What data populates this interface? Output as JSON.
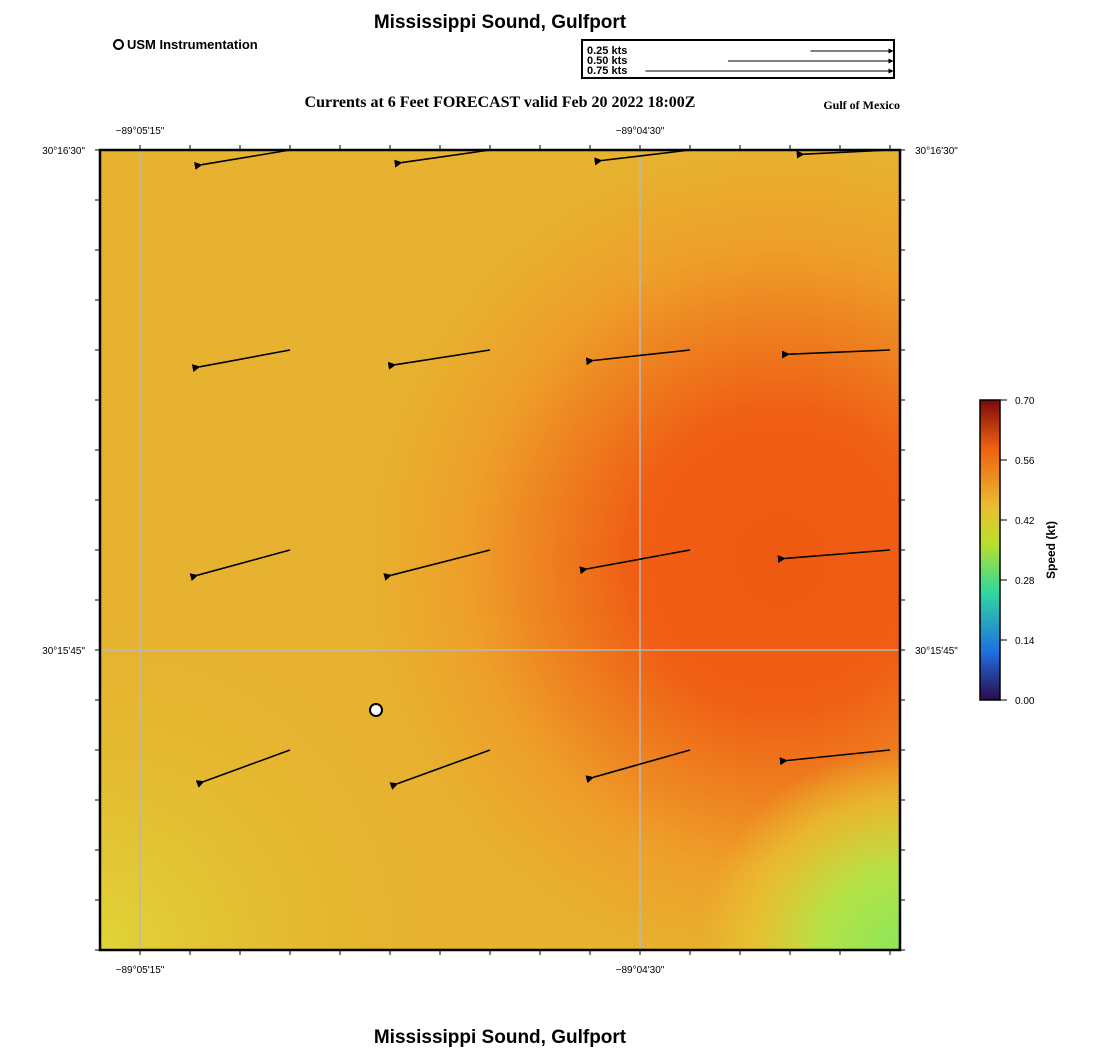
{
  "title": "Mississippi Sound, Gulfport",
  "subtitle": "Currents at 6 Feet FORECAST valid Feb 20 2022 18:00Z",
  "region": "Gulf of Mexico",
  "legend": {
    "station_label": "USM Instrumentation",
    "reference_vectors": [
      {
        "label": "0.25 kts",
        "speed": 0.25
      },
      {
        "label": "0.50 kts",
        "speed": 0.5
      },
      {
        "label": "0.75 kts",
        "speed": 0.75
      }
    ]
  },
  "axes": {
    "x_ticks": [
      "−89°05'15\"",
      "−89°04'30\""
    ],
    "y_ticks": [
      "30°16'30\"",
      "30°15'45\""
    ],
    "grid": true
  },
  "colorbar": {
    "title": "Speed (kt)",
    "ticks": [
      "0.70",
      "0.56",
      "0.42",
      "0.28",
      "0.14",
      "0.00"
    ],
    "min": 0.0,
    "max": 0.7,
    "colors": [
      "#2a0a4a",
      "#1f6fe0",
      "#2fd8a0",
      "#b8e02a",
      "#e8c030",
      "#f06010",
      "#7a0a0a"
    ]
  },
  "field_colors": {
    "low": "#9ae860",
    "mid": "#e6b830",
    "high": "#ef5a12"
  },
  "station": {
    "lon_index": 1.48,
    "lat_index": 0.48
  },
  "vectors": {
    "rows": 4,
    "cols": 4,
    "u_kt": [
      [
        -0.42,
        -0.42,
        -0.42,
        -0.41
      ],
      [
        -0.43,
        -0.45,
        -0.46,
        -0.48
      ],
      [
        -0.44,
        -0.47,
        -0.49,
        -0.5
      ],
      [
        -0.41,
        -0.44,
        -0.46,
        -0.49
      ]
    ],
    "v_kt": [
      [
        -0.07,
        -0.06,
        -0.05,
        -0.02
      ],
      [
        -0.08,
        -0.07,
        -0.05,
        -0.02
      ],
      [
        -0.12,
        -0.12,
        -0.09,
        -0.04
      ],
      [
        -0.15,
        -0.16,
        -0.13,
        -0.05
      ]
    ]
  }
}
